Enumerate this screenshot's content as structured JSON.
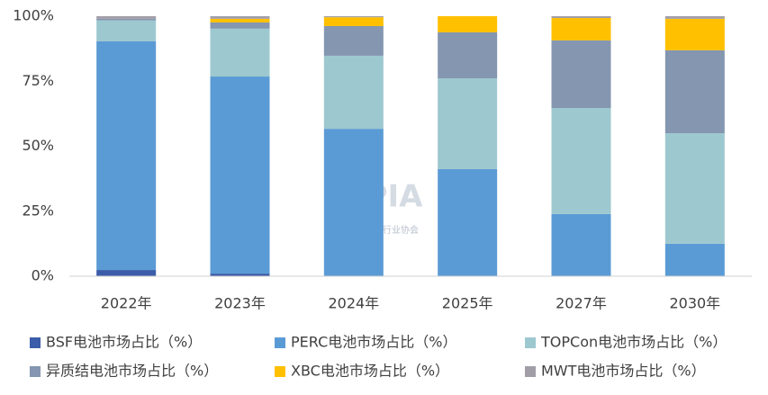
{
  "chart_data": {
    "type": "stacked-bar",
    "categories": [
      "2022年",
      "2023年",
      "2024年",
      "2025年",
      "2027年",
      "2030年"
    ],
    "series": [
      {
        "name": "BSF电池市场占比（%）",
        "color": "#3b5ca8",
        "values": [
          2.4,
          1,
          0,
          0,
          0,
          0
        ]
      },
      {
        "name": "PERC电池市场占比（%）",
        "color": "#5b9bd5",
        "values": [
          88,
          75.8,
          56.7,
          41.2,
          23.9,
          12.5
        ]
      },
      {
        "name": "TOPCon电池市场占比（%）",
        "color": "#9dc8cf",
        "values": [
          8,
          18.4,
          28.1,
          34.9,
          40.8,
          42.5
        ]
      },
      {
        "name": "异质结电池市场占比（%）",
        "color": "#8496b0",
        "values": [
          0.6,
          2.4,
          11.4,
          17.7,
          26,
          31.9
        ]
      },
      {
        "name": "XBC电池市场占比（%）",
        "color": "#ffc000",
        "values": [
          0,
          1.4,
          3.4,
          6.2,
          8.6,
          12.1
        ]
      },
      {
        "name": "MWT电池市场占比（%）",
        "color": "#a29ea8",
        "values": [
          1,
          1,
          0.4,
          0,
          0.7,
          1
        ]
      }
    ],
    "ylim": [
      0,
      100
    ],
    "yticks": [
      {
        "value": 0,
        "label": "0%"
      },
      {
        "value": 25,
        "label": "25%"
      },
      {
        "value": 50,
        "label": "50%"
      },
      {
        "value": 75,
        "label": "75%"
      },
      {
        "value": 100,
        "label": "100%"
      }
    ],
    "grid": false,
    "watermark": {
      "title": "CPIA",
      "subtitle": "中国光伏行业协会"
    }
  }
}
